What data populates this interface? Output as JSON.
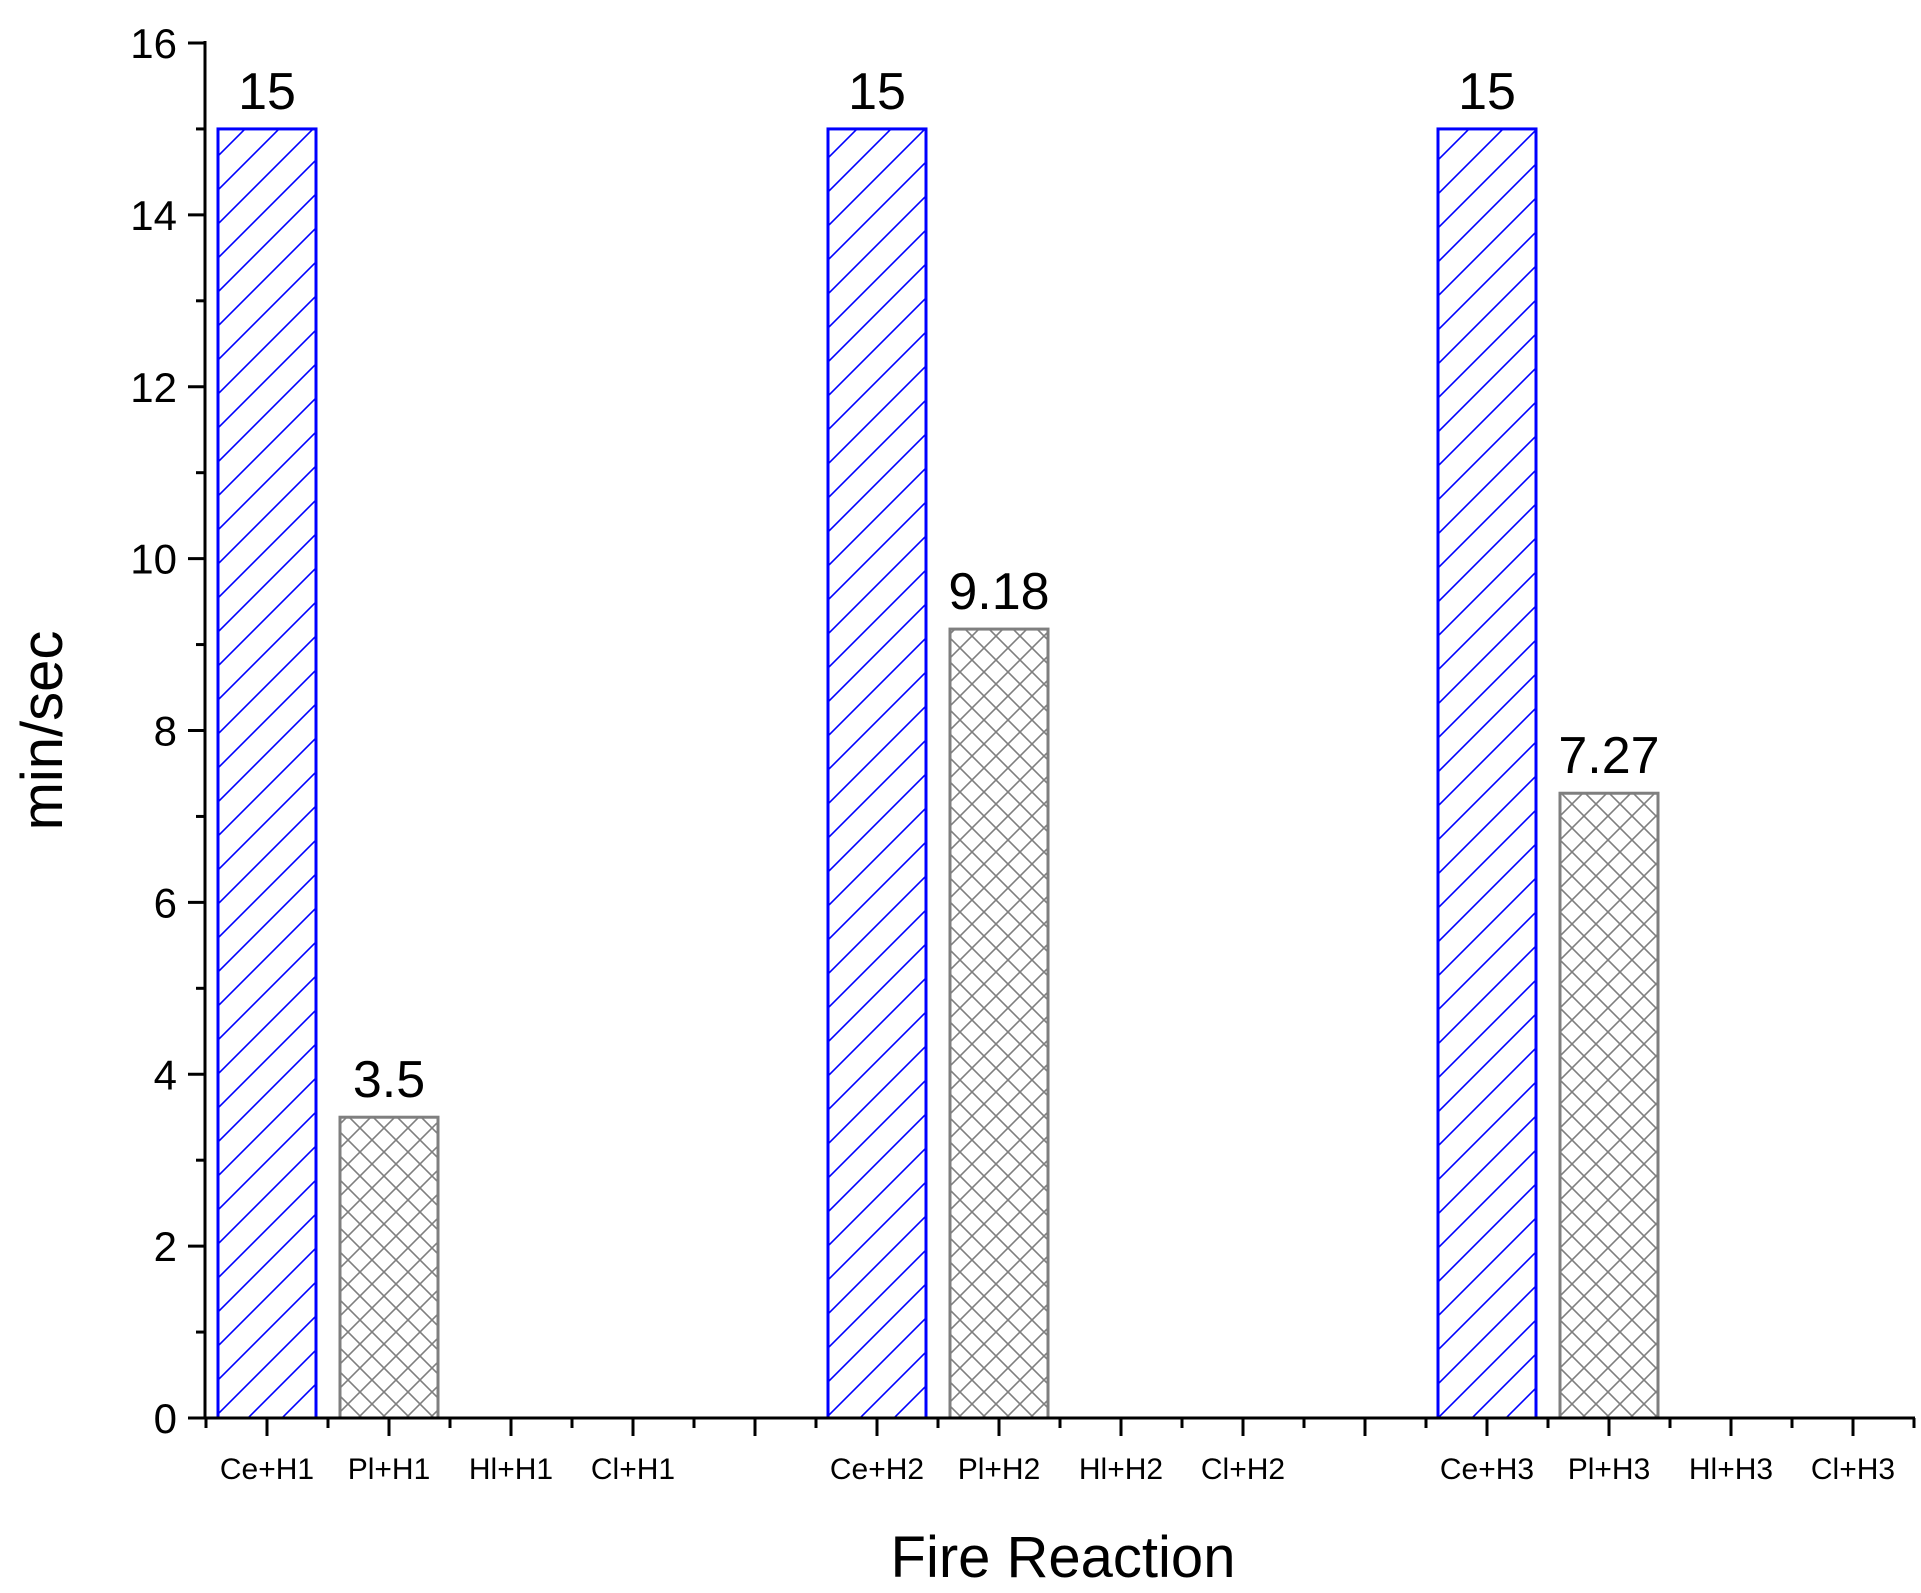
{
  "chart_data": {
    "type": "bar",
    "title": "",
    "xlabel": "Fire Reaction",
    "ylabel": "min/sec",
    "ylim": [
      0,
      16
    ],
    "yticks": [
      0,
      2,
      4,
      6,
      8,
      10,
      12,
      14,
      16
    ],
    "grid": false,
    "categories": [
      "Ce+H1",
      "Pl+H1",
      "Hl+H1",
      "Cl+H1",
      "",
      "Ce+H2",
      "Pl+H2",
      "Hl+H2",
      "Cl+H2",
      "",
      "Ce+H3",
      "Pl+H3",
      "Hl+H3",
      "Cl+H3"
    ],
    "bars": [
      {
        "category": "Ce+H1",
        "value": 15,
        "label": "15",
        "style": "blue-diagonal-hatch"
      },
      {
        "category": "Pl+H1",
        "value": 3.5,
        "label": "3.5",
        "style": "gray-crosshatch"
      },
      {
        "category": "Ce+H2",
        "value": 15,
        "label": "15",
        "style": "blue-diagonal-hatch"
      },
      {
        "category": "Pl+H2",
        "value": 9.18,
        "label": "9.18",
        "style": "gray-crosshatch"
      },
      {
        "category": "Ce+H3",
        "value": 15,
        "label": "15",
        "style": "blue-diagonal-hatch"
      },
      {
        "category": "Pl+H3",
        "value": 7.27,
        "label": "7.27",
        "style": "gray-crosshatch"
      }
    ],
    "colors": {
      "blue": "#0000ff",
      "gray": "#7f7f7f",
      "axis": "#000000"
    }
  }
}
